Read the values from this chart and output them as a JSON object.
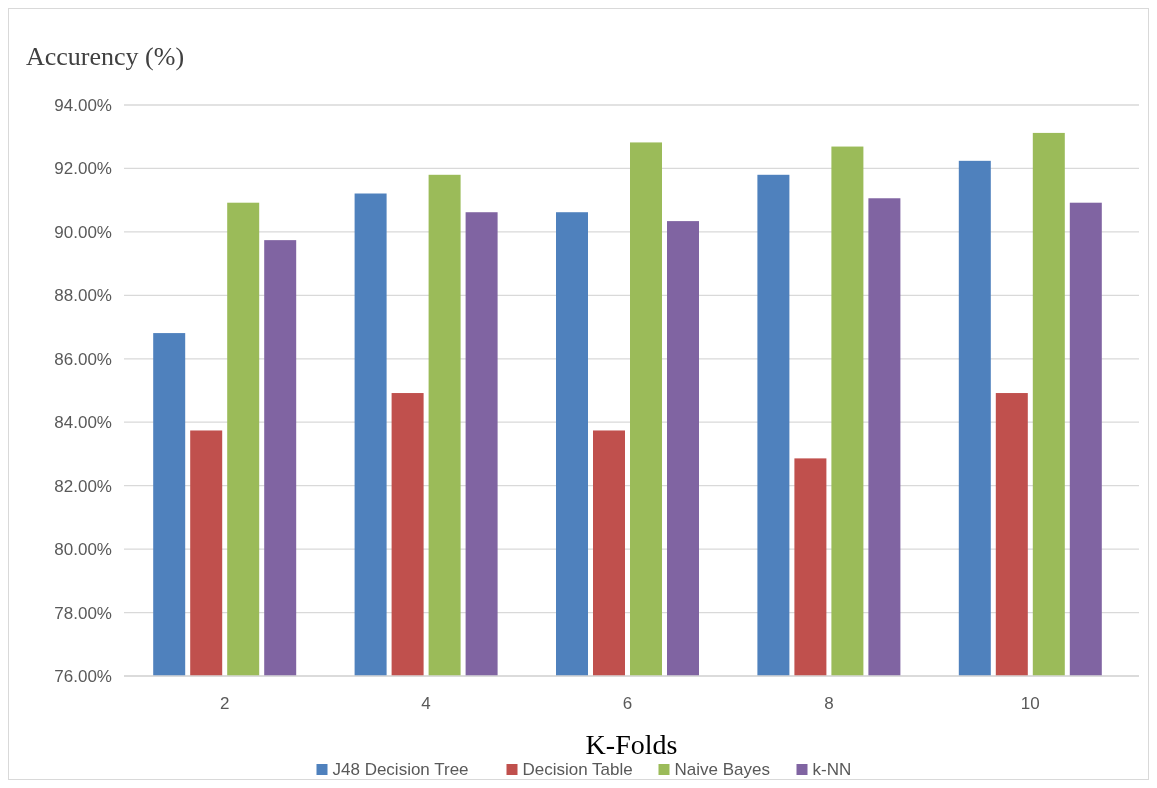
{
  "chart_data": {
    "type": "bar",
    "ylabel": "Accurency (%)",
    "xlabel": "K-Folds",
    "categories": [
      "2",
      "4",
      "6",
      "8",
      "10"
    ],
    "series": [
      {
        "name": "J48 Decision Tree",
        "color": "#4f81bd",
        "values": [
          86.81,
          91.21,
          90.62,
          91.8,
          92.24
        ]
      },
      {
        "name": "Decision Table",
        "color": "#c0504d",
        "values": [
          83.74,
          84.92,
          83.74,
          82.86,
          84.92
        ]
      },
      {
        "name": "Naive Bayes",
        "color": "#9bbb59",
        "values": [
          90.92,
          91.8,
          92.82,
          92.69,
          93.12
        ]
      },
      {
        "name": "k-NN",
        "color": "#8064a2",
        "values": [
          89.74,
          90.62,
          90.34,
          91.06,
          90.92
        ]
      }
    ],
    "ylim": [
      76,
      94
    ],
    "yticks": [
      {
        "value": 76,
        "label": "76.00%"
      },
      {
        "value": 78,
        "label": "78.00%"
      },
      {
        "value": 80,
        "label": "80.00%"
      },
      {
        "value": 82,
        "label": "82.00%"
      },
      {
        "value": 84,
        "label": "84.00%"
      },
      {
        "value": 86,
        "label": "86.00%"
      },
      {
        "value": 88,
        "label": "88.00%"
      },
      {
        "value": 90,
        "label": "90.00%"
      },
      {
        "value": 92,
        "label": "92.00%"
      },
      {
        "value": 94,
        "label": "94.00%"
      }
    ],
    "grid": "y",
    "legend": "bottom"
  }
}
